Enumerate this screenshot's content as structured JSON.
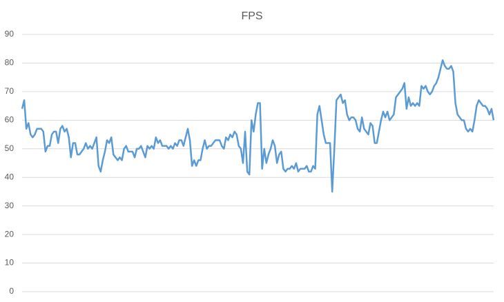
{
  "chart_data": {
    "type": "line",
    "title": "FPS",
    "color": "#5b9bd5",
    "grid": true,
    "ylim": [
      0,
      90
    ],
    "yticks": [
      0,
      10,
      20,
      30,
      40,
      50,
      60,
      70,
      80,
      90
    ],
    "values": [
      64,
      67,
      57,
      59,
      55,
      54,
      55,
      57,
      57,
      57,
      56,
      49,
      51,
      51,
      55,
      56,
      56,
      52,
      57,
      58,
      56,
      57,
      54,
      47,
      52,
      52,
      48,
      48,
      49,
      50,
      52,
      50,
      51,
      50,
      52,
      54,
      44,
      42,
      46,
      49,
      53,
      52,
      54,
      48,
      47,
      46,
      47,
      46,
      50,
      51,
      49,
      49,
      49,
      47,
      50,
      50,
      51,
      49,
      47,
      51,
      50,
      51,
      50,
      54,
      52,
      53,
      51,
      51,
      51,
      50,
      51,
      50,
      52,
      51,
      53,
      53,
      51,
      54,
      57,
      53,
      44,
      46,
      44,
      46,
      46,
      50,
      53,
      50,
      51,
      51,
      52,
      53,
      53,
      53,
      51,
      50,
      54,
      53,
      55,
      54,
      56,
      55,
      51,
      50,
      45,
      56,
      42,
      41,
      60,
      56,
      62,
      66,
      66,
      43,
      50,
      45,
      48,
      50,
      53,
      51,
      45,
      48,
      49,
      43,
      42,
      43,
      43,
      44,
      43,
      45,
      42,
      43,
      43,
      43,
      44,
      42,
      42,
      44,
      43,
      62,
      65,
      60,
      55,
      52,
      52,
      52,
      35,
      50,
      67,
      68,
      69,
      66,
      67,
      62,
      60,
      61,
      61,
      60,
      57,
      56,
      61,
      57,
      56,
      55,
      59,
      58,
      52,
      52,
      56,
      60,
      63,
      61,
      63,
      60,
      61,
      62,
      68,
      69,
      70,
      71,
      73,
      64,
      68,
      65,
      66,
      65,
      66,
      65,
      72,
      71,
      72,
      70,
      69,
      70,
      72,
      73,
      75,
      78,
      81,
      79,
      78,
      78,
      79,
      77,
      66,
      62,
      61,
      60,
      60,
      57,
      56,
      57,
      56,
      60,
      65,
      67,
      66,
      65,
      65,
      64,
      62,
      64,
      60
    ]
  }
}
